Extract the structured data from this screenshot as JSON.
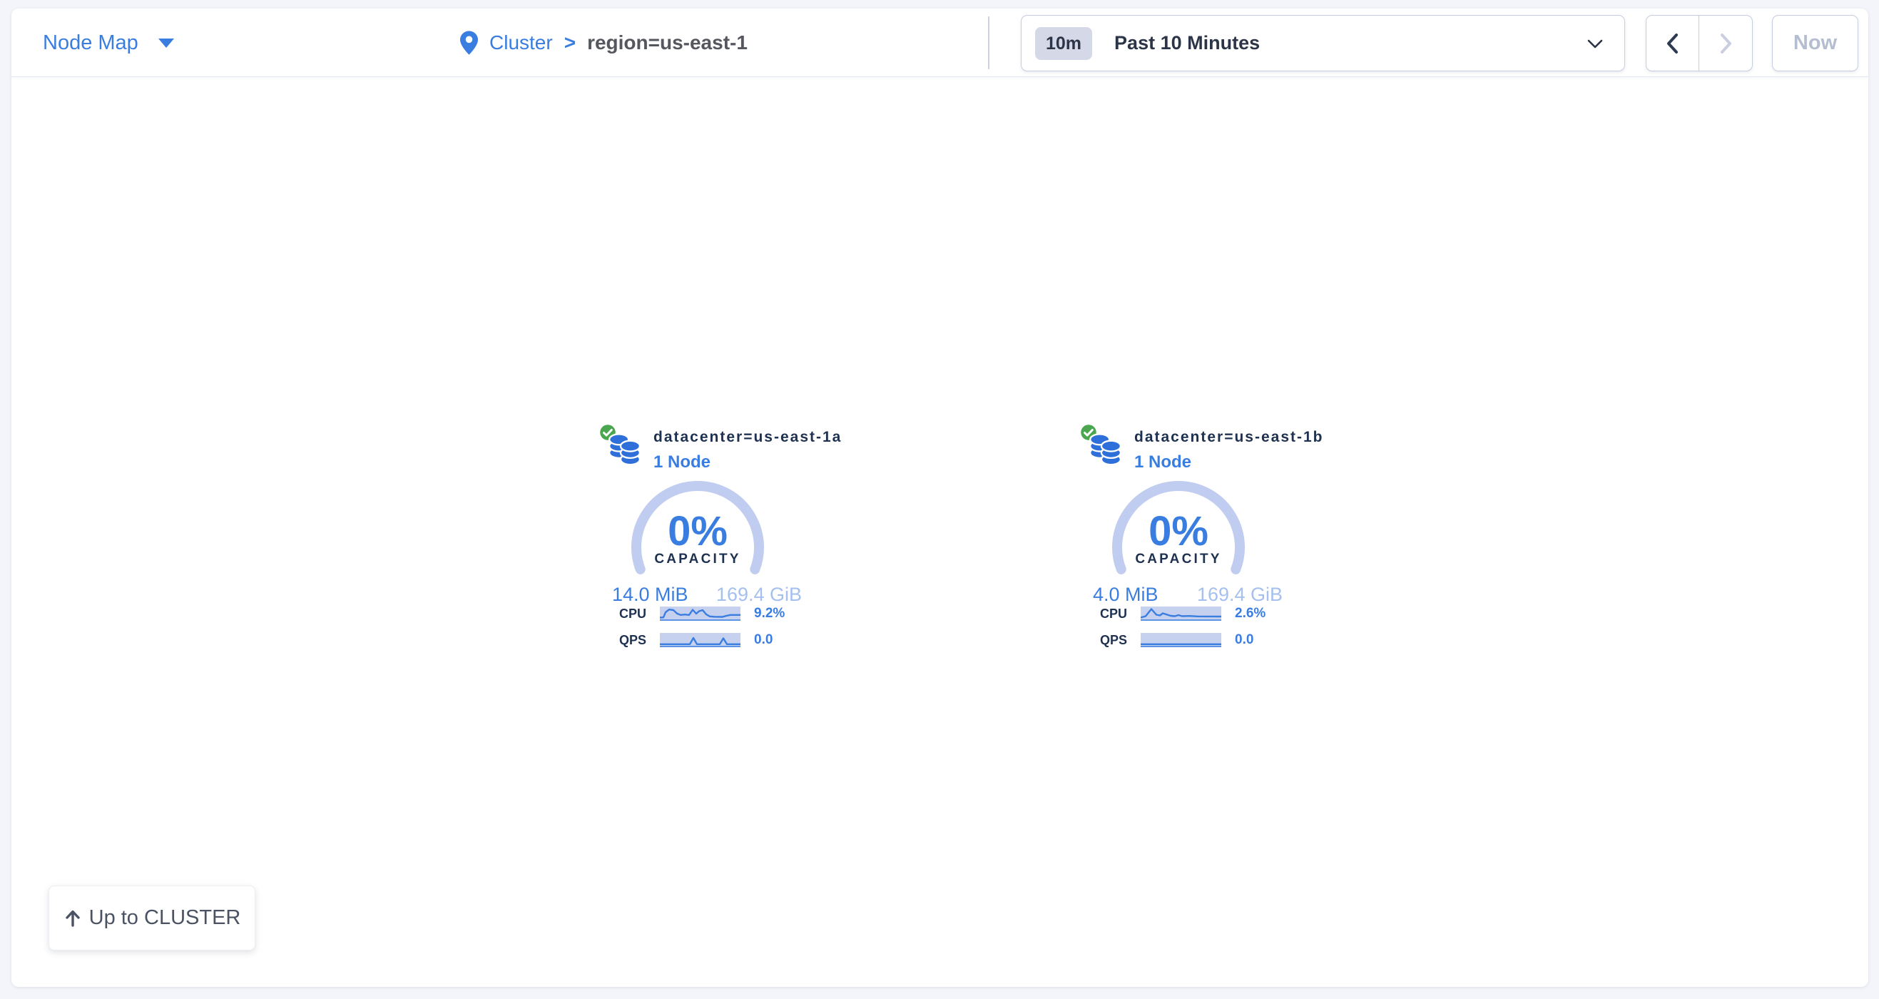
{
  "header": {
    "view_selector": {
      "label": "Node Map"
    },
    "breadcrumb": {
      "root": "Cluster",
      "separator": ">",
      "current": "region=us-east-1"
    },
    "time_window": {
      "badge": "10m",
      "label": "Past 10 Minutes"
    },
    "time_nav": {
      "now": "Now"
    }
  },
  "localities": [
    {
      "name": "datacenter=us-east-1a",
      "nodes": "1 Node",
      "capacity_pct": "0%",
      "capacity_caption": "CAPACITY",
      "capacity_used": "14.0 MiB",
      "capacity_total": "169.4 GiB",
      "cpu_label": "CPU",
      "cpu_value": "9.2%",
      "qps_label": "QPS",
      "qps_value": "0.0",
      "cpu_spark": [
        [
          0,
          15.5
        ],
        [
          5,
          15.2
        ],
        [
          8,
          8
        ],
        [
          13,
          4.2
        ],
        [
          19,
          5
        ],
        [
          24,
          9.8
        ],
        [
          29,
          11.8
        ],
        [
          35,
          11.2
        ],
        [
          41,
          11.8
        ],
        [
          46,
          4.5
        ],
        [
          51,
          10
        ],
        [
          55,
          6.5
        ],
        [
          60,
          5
        ],
        [
          65,
          11
        ],
        [
          70,
          13.8
        ],
        [
          76,
          14.3
        ],
        [
          88,
          14.5
        ],
        [
          93,
          13
        ],
        [
          99,
          11.8
        ],
        [
          113,
          11.8
        ]
      ],
      "qps_spark": [
        [
          0,
          15.8
        ],
        [
          42,
          15.8
        ],
        [
          47,
          7
        ],
        [
          52,
          15.8
        ],
        [
          84,
          15.8
        ],
        [
          89,
          7.5
        ],
        [
          94,
          15.8
        ],
        [
          113,
          15.8
        ]
      ]
    },
    {
      "name": "datacenter=us-east-1b",
      "nodes": "1 Node",
      "capacity_pct": "0%",
      "capacity_caption": "CAPACITY",
      "capacity_used": "4.0 MiB",
      "capacity_total": "169.4 GiB",
      "cpu_label": "CPU",
      "cpu_value": "2.6%",
      "qps_label": "QPS",
      "qps_value": "0.0",
      "cpu_spark": [
        [
          0,
          15.5
        ],
        [
          7,
          13.5
        ],
        [
          15,
          3.5
        ],
        [
          22,
          11.5
        ],
        [
          27,
          12.5
        ],
        [
          31,
          9.5
        ],
        [
          36,
          11
        ],
        [
          42,
          13
        ],
        [
          48,
          13.5
        ],
        [
          53,
          12
        ],
        [
          58,
          13.5
        ],
        [
          68,
          13.2
        ],
        [
          80,
          13.8
        ],
        [
          113,
          14
        ]
      ],
      "qps_spark": [
        [
          0,
          15.8
        ],
        [
          113,
          15.8
        ]
      ]
    }
  ],
  "footer": {
    "up_button": "Up to CLUSTER"
  },
  "colors": {
    "accent_blue": "#3a7de1",
    "navy": "#1e3150",
    "gauge_arc": "#c0cdf0",
    "capacity_total": "#a5c0ee",
    "health_green": "#4aa74f",
    "db_icon_blue": "#2e6fd9",
    "header_text": "#2c3547",
    "disabled_text": "#b5bdd1",
    "border": "#c6cde1"
  }
}
